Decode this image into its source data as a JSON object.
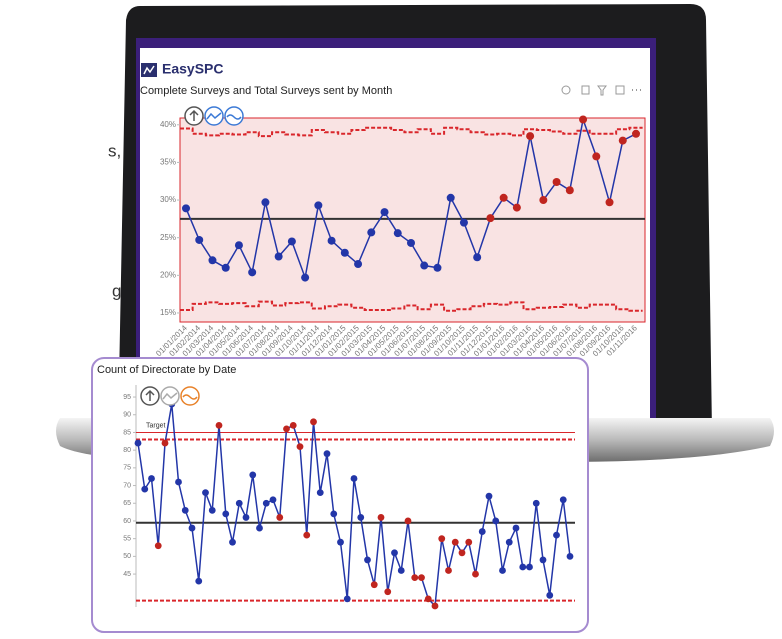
{
  "page": {
    "brand": "EasySPC",
    "side_text": [
      "s,",
      "g"
    ]
  },
  "chart_data": [
    {
      "type": "line",
      "title": "Complete Surveys and Total Surveys sent by Month",
      "categories": [
        "01/01/2014",
        "01/02/2014",
        "01/03/2014",
        "01/04/2014",
        "01/05/2014",
        "01/06/2014",
        "01/07/2014",
        "01/08/2014",
        "01/09/2014",
        "01/10/2014",
        "01/11/2014",
        "01/12/2014",
        "01/01/2015",
        "01/02/2015",
        "01/03/2015",
        "01/04/2015",
        "01/05/2015",
        "01/06/2015",
        "01/07/2015",
        "01/08/2015",
        "01/09/2015",
        "01/10/2015",
        "01/11/2015",
        "01/12/2015",
        "01/01/2016",
        "01/02/2016",
        "01/03/2016",
        "01/04/2016",
        "01/05/2016",
        "01/06/2016",
        "01/07/2016",
        "01/08/2016",
        "01/09/2016",
        "01/10/2016",
        "01/11/2016"
      ],
      "values": [
        28.9,
        24.7,
        22,
        21,
        24,
        20.4,
        29.7,
        22.5,
        24.5,
        19.7,
        29.3,
        24.6,
        23,
        21.5,
        25.7,
        28.4,
        25.6,
        24.3,
        21.3,
        21,
        30.3,
        27,
        22.4,
        27.6,
        30.3,
        29,
        38.5,
        30,
        32.4,
        31.3,
        40.7,
        35.8,
        29.7,
        37.9,
        38.8
      ],
      "color": "#2336a8",
      "marker_colors": [
        "#2336a8",
        "#2336a8",
        "#2336a8",
        "#2336a8",
        "#2336a8",
        "#2336a8",
        "#2336a8",
        "#2336a8",
        "#2336a8",
        "#2336a8",
        "#2336a8",
        "#2336a8",
        "#2336a8",
        "#2336a8",
        "#2336a8",
        "#2336a8",
        "#2336a8",
        "#2336a8",
        "#2336a8",
        "#2336a8",
        "#2336a8",
        "#2336a8",
        "#2336a8",
        "#c0251f",
        "#c0251f",
        "#c0251f",
        "#c0251f",
        "#c0251f",
        "#c0251f",
        "#c0251f",
        "#c0251f",
        "#c0251f",
        "#c0251f",
        "#c0251f",
        "#c0251f"
      ],
      "mean": 27.5,
      "ucl": [
        39.5,
        38.8,
        38.6,
        38.8,
        38.7,
        39.0,
        38.5,
        39.0,
        38.7,
        38.6,
        39.3,
        39.0,
        38.8,
        39.3,
        39.6,
        39.6,
        39.3,
        39.0,
        39.4,
        38.8,
        39.6,
        39.4,
        39.0,
        38.7,
        38.8,
        38.6,
        39.4,
        39.3,
        39.1,
        38.8,
        39.2,
        38.8,
        38.8,
        39.4,
        39.6
      ],
      "lcl": [
        15.4,
        16.2,
        16.4,
        16.2,
        16.3,
        15.9,
        16.5,
        16.0,
        16.3,
        16.4,
        15.6,
        15.9,
        16.1,
        15.7,
        15.4,
        15.4,
        15.6,
        16.0,
        15.5,
        16.1,
        15.3,
        15.5,
        15.9,
        16.2,
        16.1,
        16.4,
        15.5,
        15.7,
        15.8,
        16.1,
        15.7,
        16.1,
        16.1,
        15.5,
        15.3
      ],
      "limit_color": "#d9262b",
      "plot_fill": "#f9e3e3",
      "ylim": [
        13.8,
        40.9
      ],
      "yticks": [
        {
          "value": 15,
          "label": "15%"
        },
        {
          "value": 20,
          "label": "20%"
        },
        {
          "value": 25,
          "label": "25%"
        },
        {
          "value": 30,
          "label": "30%"
        },
        {
          "value": 35,
          "label": "35%"
        },
        {
          "value": 40,
          "label": "40%"
        }
      ]
    },
    {
      "type": "line",
      "title": "Count of Directorate by Date",
      "values": [
        82,
        69,
        72,
        53,
        82,
        93,
        71,
        63,
        58,
        43,
        68,
        63,
        87,
        62,
        54,
        65,
        61,
        73,
        58,
        65,
        66,
        61,
        86,
        87,
        81,
        56,
        88,
        68,
        79,
        62,
        54,
        38,
        72,
        61,
        49,
        42,
        61,
        40,
        51,
        46,
        60,
        44,
        44,
        38,
        36,
        55,
        46,
        54,
        51,
        54,
        45,
        57,
        67,
        60,
        46,
        54,
        58,
        47,
        47,
        65,
        49,
        39,
        56,
        66,
        50
      ],
      "color": "#2336a8",
      "marker_colors": [
        "#2336a8",
        "#2336a8",
        "#2336a8",
        "#c0251f",
        "#c0251f",
        "#2336a8",
        "#2336a8",
        "#2336a8",
        "#2336a8",
        "#2336a8",
        "#2336a8",
        "#2336a8",
        "#c0251f",
        "#2336a8",
        "#2336a8",
        "#2336a8",
        "#2336a8",
        "#2336a8",
        "#2336a8",
        "#2336a8",
        "#2336a8",
        "#c0251f",
        "#c0251f",
        "#c0251f",
        "#c0251f",
        "#c0251f",
        "#c0251f",
        "#2336a8",
        "#2336a8",
        "#2336a8",
        "#2336a8",
        "#2336a8",
        "#2336a8",
        "#2336a8",
        "#2336a8",
        "#c0251f",
        "#c0251f",
        "#c0251f",
        "#2336a8",
        "#2336a8",
        "#c0251f",
        "#c0251f",
        "#c0251f",
        "#c0251f",
        "#c0251f",
        "#c0251f",
        "#c0251f",
        "#c0251f",
        "#c0251f",
        "#c0251f",
        "#c0251f",
        "#2336a8",
        "#2336a8",
        "#2336a8",
        "#2336a8",
        "#2336a8",
        "#2336a8",
        "#2336a8",
        "#2336a8",
        "#2336a8",
        "#2336a8",
        "#2336a8",
        "#2336a8",
        "#2336a8",
        "#2336a8"
      ],
      "mean": 59.5,
      "ucl": 83,
      "lcl": 37.5,
      "target": {
        "value": 85,
        "label": "Target"
      },
      "limit_color": "#d9262b",
      "ylim": [
        35.7,
        98.4
      ],
      "yticks": [
        45,
        50,
        55,
        60,
        65,
        70,
        75,
        80,
        85,
        90,
        95
      ]
    }
  ]
}
